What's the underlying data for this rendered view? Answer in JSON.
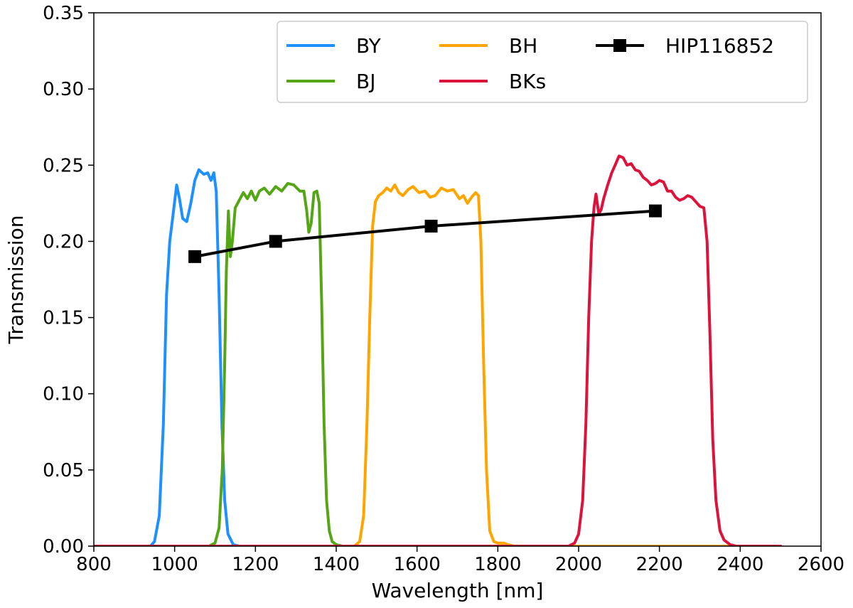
{
  "chart_data": {
    "type": "line",
    "title": "",
    "xlabel": "Wavelength [nm]",
    "ylabel": "Transmission",
    "xlim": [
      800,
      2600
    ],
    "ylim": [
      0.0,
      0.35
    ],
    "xticks": [
      800,
      1000,
      1200,
      1400,
      1600,
      1800,
      2000,
      2200,
      2400,
      2600
    ],
    "xtick_labels": [
      "800",
      "1000",
      "1200",
      "1400",
      "1600",
      "1800",
      "2000",
      "2200",
      "2400",
      "2600"
    ],
    "yticks": [
      0.0,
      0.05,
      0.1,
      0.15,
      0.2,
      0.25,
      0.3,
      0.35
    ],
    "ytick_labels": [
      "0.00",
      "0.05",
      "0.10",
      "0.15",
      "0.20",
      "0.25",
      "0.30",
      "0.35"
    ],
    "grid": false,
    "legend_position": "top-right",
    "series": [
      {
        "name": "BY",
        "color": "#1E90FF",
        "points": [
          [
            800,
            0
          ],
          [
            940,
            0
          ],
          [
            950,
            0.003
          ],
          [
            962,
            0.02
          ],
          [
            972,
            0.08
          ],
          [
            980,
            0.165
          ],
          [
            988,
            0.2
          ],
          [
            995,
            0.215
          ],
          [
            1005,
            0.237
          ],
          [
            1012,
            0.228
          ],
          [
            1020,
            0.215
          ],
          [
            1030,
            0.213
          ],
          [
            1040,
            0.225
          ],
          [
            1050,
            0.24
          ],
          [
            1060,
            0.247
          ],
          [
            1072,
            0.244
          ],
          [
            1082,
            0.245
          ],
          [
            1090,
            0.24
          ],
          [
            1097,
            0.245
          ],
          [
            1103,
            0.233
          ],
          [
            1110,
            0.165
          ],
          [
            1117,
            0.08
          ],
          [
            1124,
            0.03
          ],
          [
            1132,
            0.008
          ],
          [
            1145,
            0.001
          ],
          [
            1160,
            0
          ],
          [
            2500,
            0
          ]
        ]
      },
      {
        "name": "BJ",
        "color": "#55A616",
        "points": [
          [
            800,
            0
          ],
          [
            1085,
            0
          ],
          [
            1100,
            0.002
          ],
          [
            1110,
            0.012
          ],
          [
            1118,
            0.05
          ],
          [
            1124,
            0.12
          ],
          [
            1128,
            0.18
          ],
          [
            1133,
            0.22
          ],
          [
            1138,
            0.19
          ],
          [
            1143,
            0.2
          ],
          [
            1150,
            0.222
          ],
          [
            1160,
            0.227
          ],
          [
            1170,
            0.232
          ],
          [
            1180,
            0.228
          ],
          [
            1190,
            0.233
          ],
          [
            1200,
            0.227
          ],
          [
            1210,
            0.233
          ],
          [
            1222,
            0.235
          ],
          [
            1235,
            0.231
          ],
          [
            1250,
            0.236
          ],
          [
            1265,
            0.233
          ],
          [
            1280,
            0.238
          ],
          [
            1295,
            0.237
          ],
          [
            1310,
            0.233
          ],
          [
            1320,
            0.233
          ],
          [
            1327,
            0.22
          ],
          [
            1332,
            0.206
          ],
          [
            1338,
            0.212
          ],
          [
            1345,
            0.232
          ],
          [
            1352,
            0.233
          ],
          [
            1358,
            0.225
          ],
          [
            1364,
            0.16
          ],
          [
            1370,
            0.08
          ],
          [
            1376,
            0.03
          ],
          [
            1383,
            0.01
          ],
          [
            1390,
            0.003
          ],
          [
            1400,
            0.001
          ],
          [
            1415,
            0
          ],
          [
            2500,
            0
          ]
        ]
      },
      {
        "name": "BH",
        "color": "#FFA500",
        "points": [
          [
            800,
            0
          ],
          [
            1445,
            0
          ],
          [
            1458,
            0.003
          ],
          [
            1468,
            0.02
          ],
          [
            1476,
            0.08
          ],
          [
            1483,
            0.15
          ],
          [
            1490,
            0.21
          ],
          [
            1497,
            0.226
          ],
          [
            1505,
            0.23
          ],
          [
            1515,
            0.232
          ],
          [
            1525,
            0.235
          ],
          [
            1535,
            0.233
          ],
          [
            1545,
            0.237
          ],
          [
            1555,
            0.232
          ],
          [
            1565,
            0.23
          ],
          [
            1578,
            0.234
          ],
          [
            1590,
            0.236
          ],
          [
            1605,
            0.232
          ],
          [
            1620,
            0.233
          ],
          [
            1632,
            0.229
          ],
          [
            1645,
            0.23
          ],
          [
            1660,
            0.235
          ],
          [
            1675,
            0.233
          ],
          [
            1690,
            0.234
          ],
          [
            1705,
            0.228
          ],
          [
            1715,
            0.23
          ],
          [
            1725,
            0.225
          ],
          [
            1735,
            0.229
          ],
          [
            1745,
            0.232
          ],
          [
            1752,
            0.23
          ],
          [
            1758,
            0.2
          ],
          [
            1765,
            0.12
          ],
          [
            1772,
            0.05
          ],
          [
            1780,
            0.01
          ],
          [
            1790,
            0.003
          ],
          [
            1800,
            0.002
          ],
          [
            1815,
            0.002
          ],
          [
            1825,
            0.001
          ],
          [
            1840,
            0
          ],
          [
            2500,
            0
          ]
        ]
      },
      {
        "name": "BKs",
        "color": "#DC143C",
        "points": [
          [
            800,
            0
          ],
          [
            1975,
            0
          ],
          [
            1990,
            0.002
          ],
          [
            2000,
            0.008
          ],
          [
            2010,
            0.03
          ],
          [
            2018,
            0.08
          ],
          [
            2025,
            0.15
          ],
          [
            2032,
            0.2
          ],
          [
            2038,
            0.222
          ],
          [
            2043,
            0.231
          ],
          [
            2050,
            0.218
          ],
          [
            2056,
            0.221
          ],
          [
            2062,
            0.228
          ],
          [
            2072,
            0.237
          ],
          [
            2082,
            0.245
          ],
          [
            2092,
            0.251
          ],
          [
            2100,
            0.256
          ],
          [
            2110,
            0.255
          ],
          [
            2120,
            0.25
          ],
          [
            2130,
            0.251
          ],
          [
            2140,
            0.247
          ],
          [
            2150,
            0.246
          ],
          [
            2160,
            0.242
          ],
          [
            2170,
            0.24
          ],
          [
            2180,
            0.237
          ],
          [
            2190,
            0.238
          ],
          [
            2200,
            0.24
          ],
          [
            2210,
            0.239
          ],
          [
            2220,
            0.233
          ],
          [
            2230,
            0.233
          ],
          [
            2240,
            0.229
          ],
          [
            2250,
            0.227
          ],
          [
            2260,
            0.228
          ],
          [
            2270,
            0.23
          ],
          [
            2280,
            0.229
          ],
          [
            2290,
            0.226
          ],
          [
            2300,
            0.223
          ],
          [
            2310,
            0.222
          ],
          [
            2318,
            0.2
          ],
          [
            2325,
            0.14
          ],
          [
            2332,
            0.07
          ],
          [
            2340,
            0.03
          ],
          [
            2350,
            0.01
          ],
          [
            2360,
            0.004
          ],
          [
            2375,
            0.001
          ],
          [
            2390,
            0
          ],
          [
            2500,
            0
          ]
        ]
      },
      {
        "name": "HIP116852",
        "color": "#000000",
        "marker": "square",
        "points": [
          [
            1050,
            0.19
          ],
          [
            1250,
            0.2
          ],
          [
            1635,
            0.21
          ],
          [
            2190,
            0.22
          ]
        ]
      }
    ],
    "legend": [
      {
        "label": "BY",
        "color": "#1E90FF",
        "marker": "none"
      },
      {
        "label": "BJ",
        "color": "#55A616",
        "marker": "none"
      },
      {
        "label": "BH",
        "color": "#FFA500",
        "marker": "none"
      },
      {
        "label": "BKs",
        "color": "#DC143C",
        "marker": "none"
      },
      {
        "label": "HIP116852",
        "color": "#000000",
        "marker": "square"
      }
    ]
  }
}
